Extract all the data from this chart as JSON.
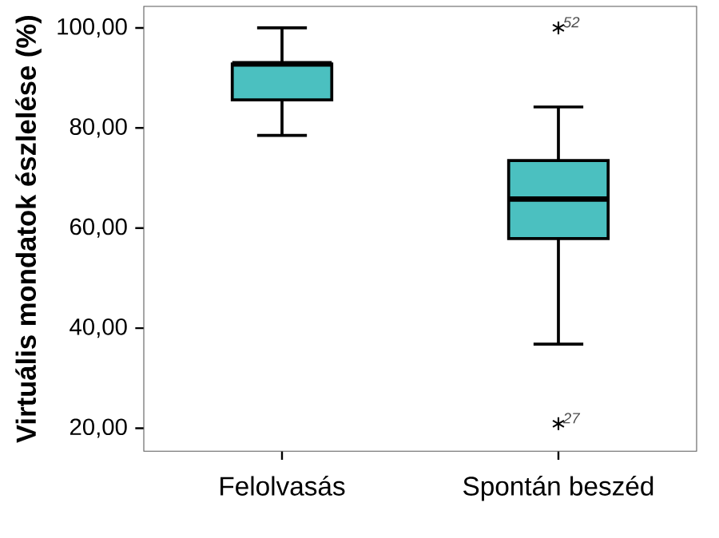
{
  "chart_data": {
    "type": "box",
    "ylabel": "Virtuális mondatok észlelése (%)",
    "categories": [
      "Felolvasás",
      "Spontán beszéd"
    ],
    "boxes": [
      {
        "low": 78.5,
        "q1": 85.6,
        "median": 92.8,
        "q3": 92.8,
        "high": 100
      },
      {
        "low": 36.8,
        "q1": 57.9,
        "median": 65.8,
        "q3": 73.5,
        "high": 84.2,
        "outliers": [
          100,
          20.9
        ]
      }
    ],
    "color": "#4bc0c0",
    "marker": "star",
    "ylim": [
      15.4,
      104.3
    ],
    "yticks": [
      {
        "value": 20,
        "label": "20,00"
      },
      {
        "value": 40,
        "label": "40,00"
      },
      {
        "value": 60,
        "label": "60,00"
      },
      {
        "value": 80,
        "label": "80,00"
      },
      {
        "value": 100,
        "label": "100,00"
      }
    ],
    "annotations": [
      "52",
      "27"
    ]
  }
}
